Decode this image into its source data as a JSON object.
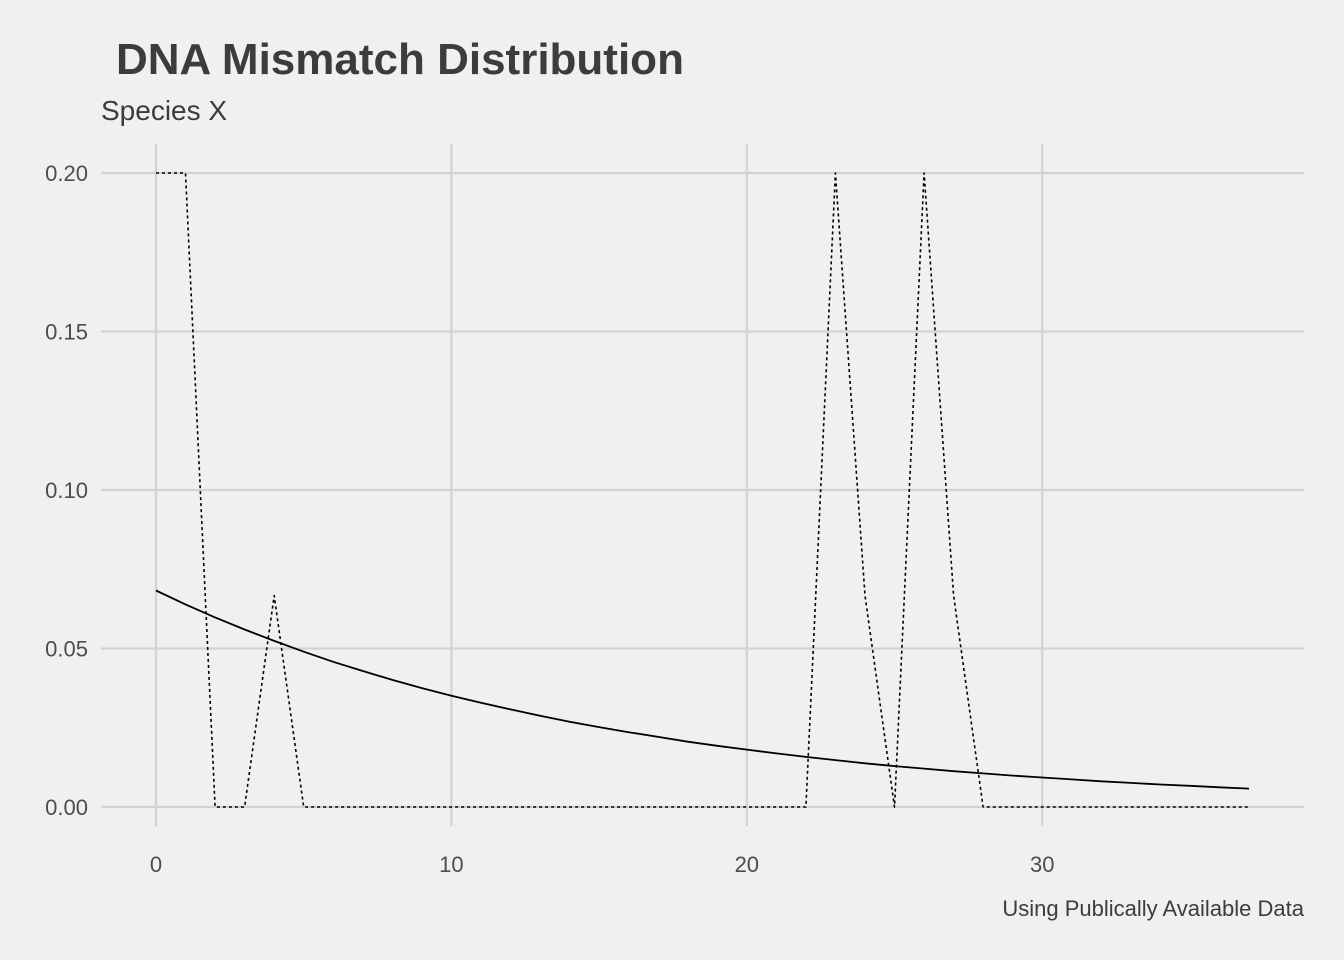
{
  "chart_data": {
    "type": "line",
    "title": "DNA Mismatch Distribution",
    "subtitle": "Species X",
    "caption": "Using Publically Available Data",
    "xlabel": "",
    "ylabel": "",
    "xlim": [
      0,
      37
    ],
    "ylim": [
      0,
      0.2
    ],
    "x_ticks": [
      0,
      10,
      20,
      30
    ],
    "y_ticks": [
      0.0,
      0.05,
      0.1,
      0.15,
      0.2
    ],
    "x_tick_labels": [
      "0",
      "10",
      "20",
      "30"
    ],
    "y_tick_labels": [
      "0.00",
      "0.05",
      "0.10",
      "0.15",
      "0.20"
    ],
    "grid": true,
    "legend": "none",
    "series": [
      {
        "style": "dotted",
        "color": "#000000",
        "x": [
          0,
          1,
          2,
          3,
          4,
          5,
          6,
          7,
          8,
          9,
          10,
          11,
          12,
          13,
          14,
          15,
          16,
          17,
          18,
          19,
          20,
          21,
          22,
          23,
          24,
          25,
          26,
          27,
          28,
          29,
          30,
          31,
          32,
          33,
          34,
          35,
          36,
          37
        ],
        "values": [
          0.2,
          0.2,
          0,
          0,
          0.0667,
          0,
          0,
          0,
          0,
          0,
          0,
          0,
          0,
          0,
          0,
          0,
          0,
          0,
          0,
          0,
          0,
          0,
          0,
          0.2,
          0.0667,
          0,
          0.2,
          0.0667,
          0,
          0,
          0,
          0,
          0,
          0,
          0,
          0,
          0,
          0
        ]
      },
      {
        "style": "solid",
        "color": "#000000",
        "x": [
          0,
          1,
          2,
          3,
          4,
          5,
          6,
          7,
          8,
          9,
          10,
          11,
          12,
          13,
          14,
          15,
          16,
          17,
          18,
          19,
          20,
          21,
          22,
          23,
          24,
          25,
          26,
          27,
          28,
          29,
          30,
          31,
          32,
          33,
          34,
          35,
          36,
          37
        ],
        "values": [
          0.0683,
          0.0639,
          0.0598,
          0.056,
          0.0524,
          0.049,
          0.0458,
          0.0429,
          0.0401,
          0.0375,
          0.0351,
          0.0329,
          0.0308,
          0.0288,
          0.0269,
          0.0252,
          0.0236,
          0.0221,
          0.0206,
          0.0193,
          0.0181,
          0.0169,
          0.0158,
          0.0148,
          0.0138,
          0.0129,
          0.0121,
          0.0113,
          0.0106,
          0.0099,
          0.0093,
          0.0087,
          0.0081,
          0.0076,
          0.0071,
          0.0067,
          0.0062,
          0.0058
        ]
      }
    ]
  }
}
